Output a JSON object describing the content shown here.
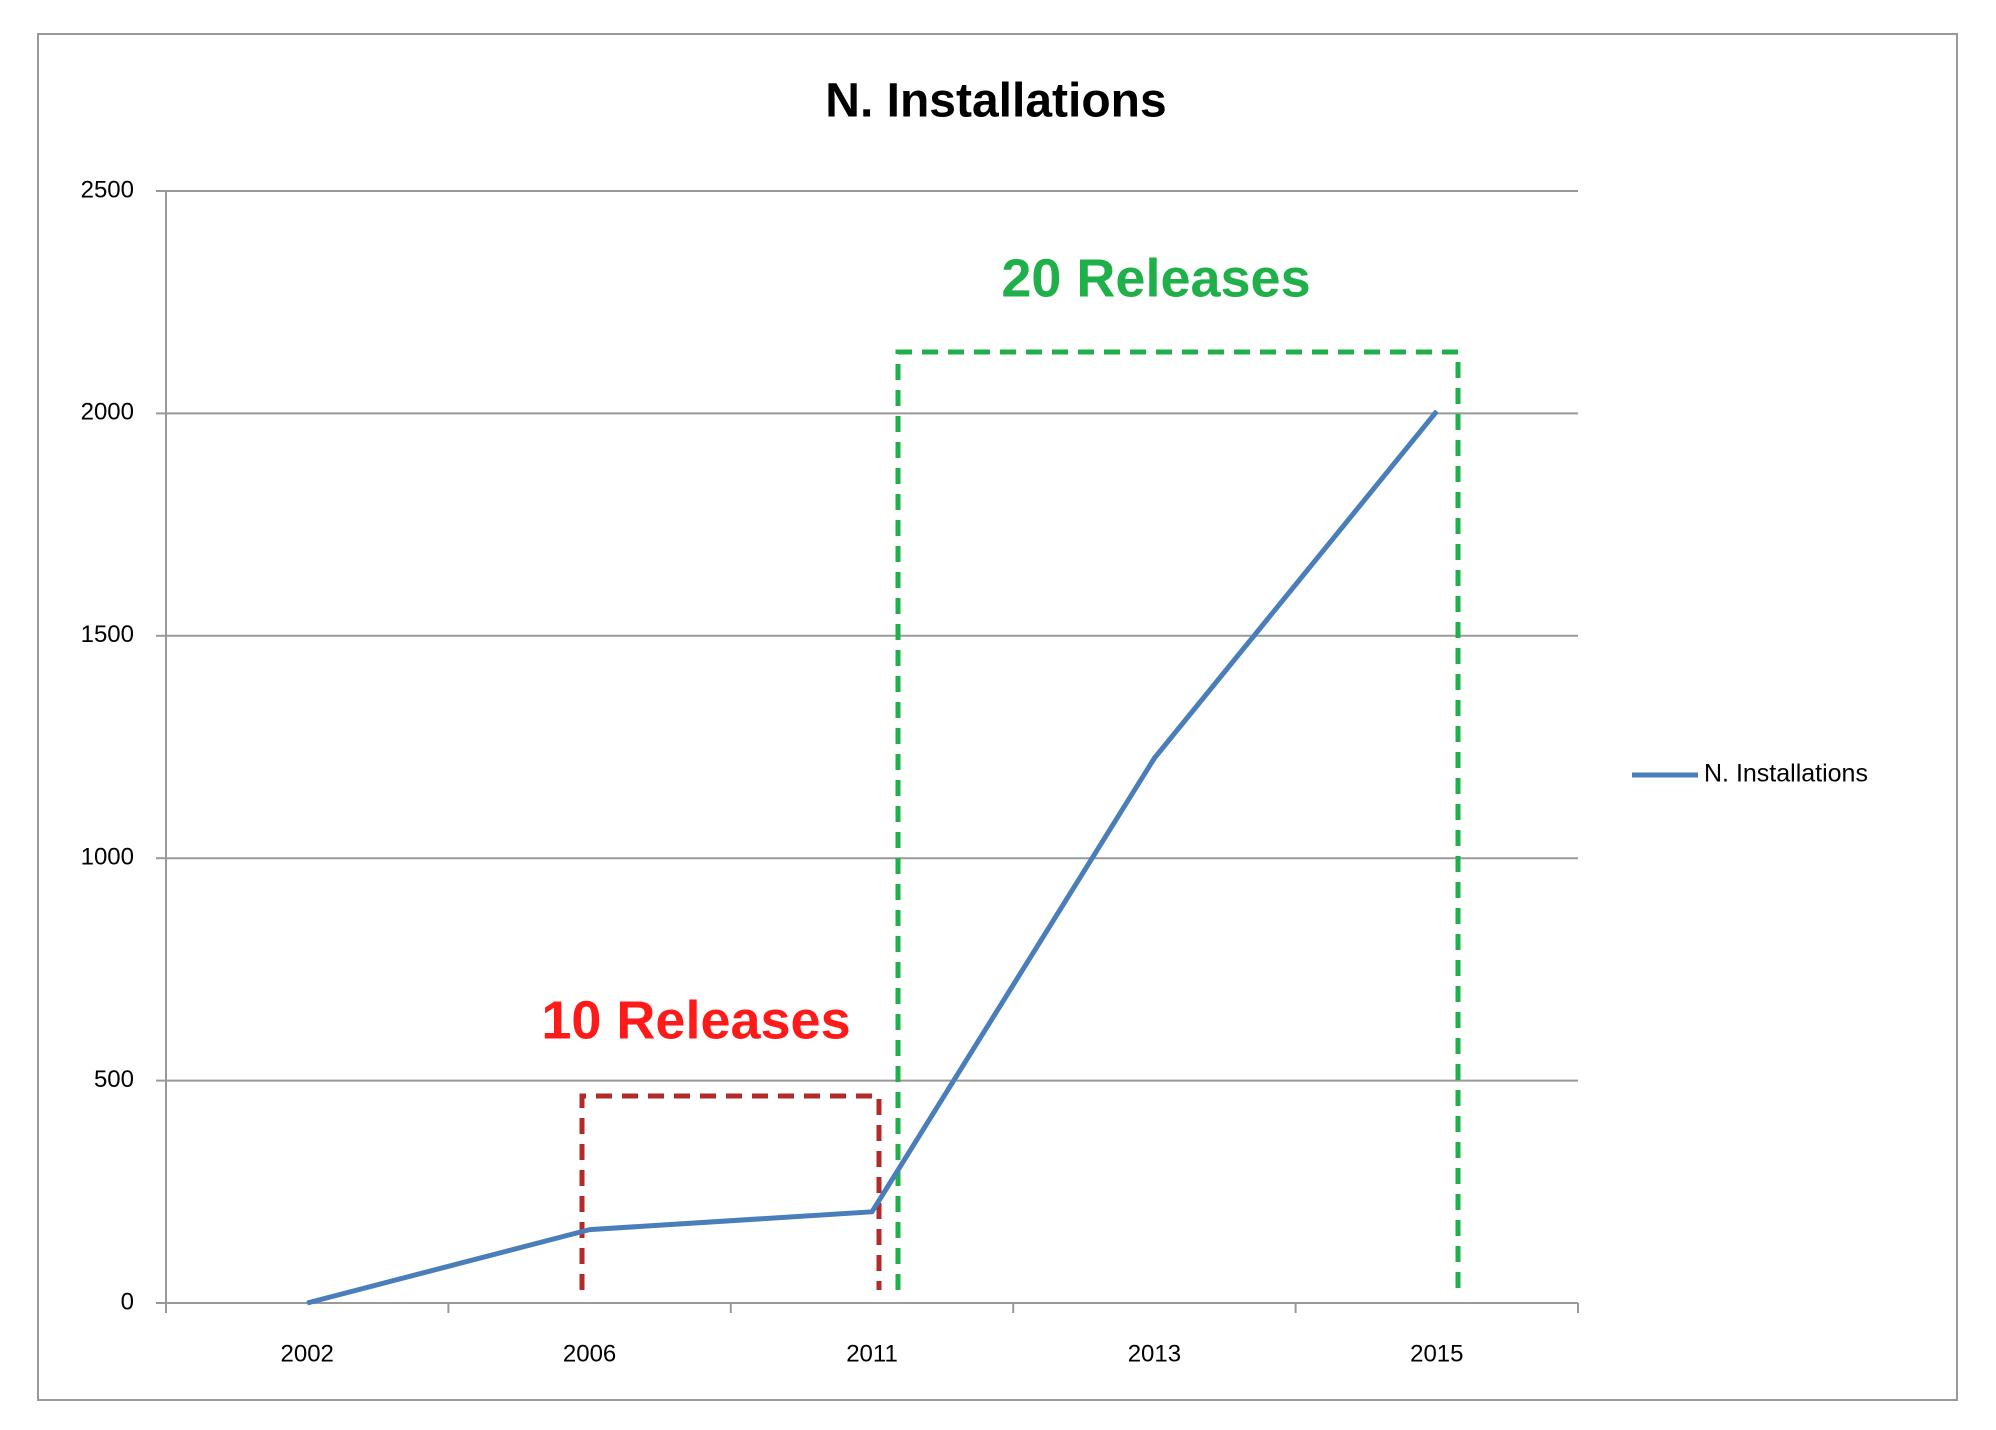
{
  "chart_data": {
    "type": "line",
    "title": "N. Installations",
    "categories": [
      "2002",
      "2006",
      "2011",
      "2013",
      "2015"
    ],
    "series": [
      {
        "name": "N. Installations",
        "color": "#4a7ebb",
        "values": [
          0,
          165,
          205,
          1225,
          2005
        ]
      }
    ],
    "ylim": [
      0,
      2500
    ],
    "yticks": [
      0,
      500,
      1000,
      1500,
      2000,
      2500
    ],
    "grid": true,
    "legend": "right",
    "annotations": [
      {
        "text": "10 Releases",
        "color": "#ff1a1a"
      },
      {
        "text": "20 Releases",
        "color": "#1fb04a"
      }
    ]
  }
}
